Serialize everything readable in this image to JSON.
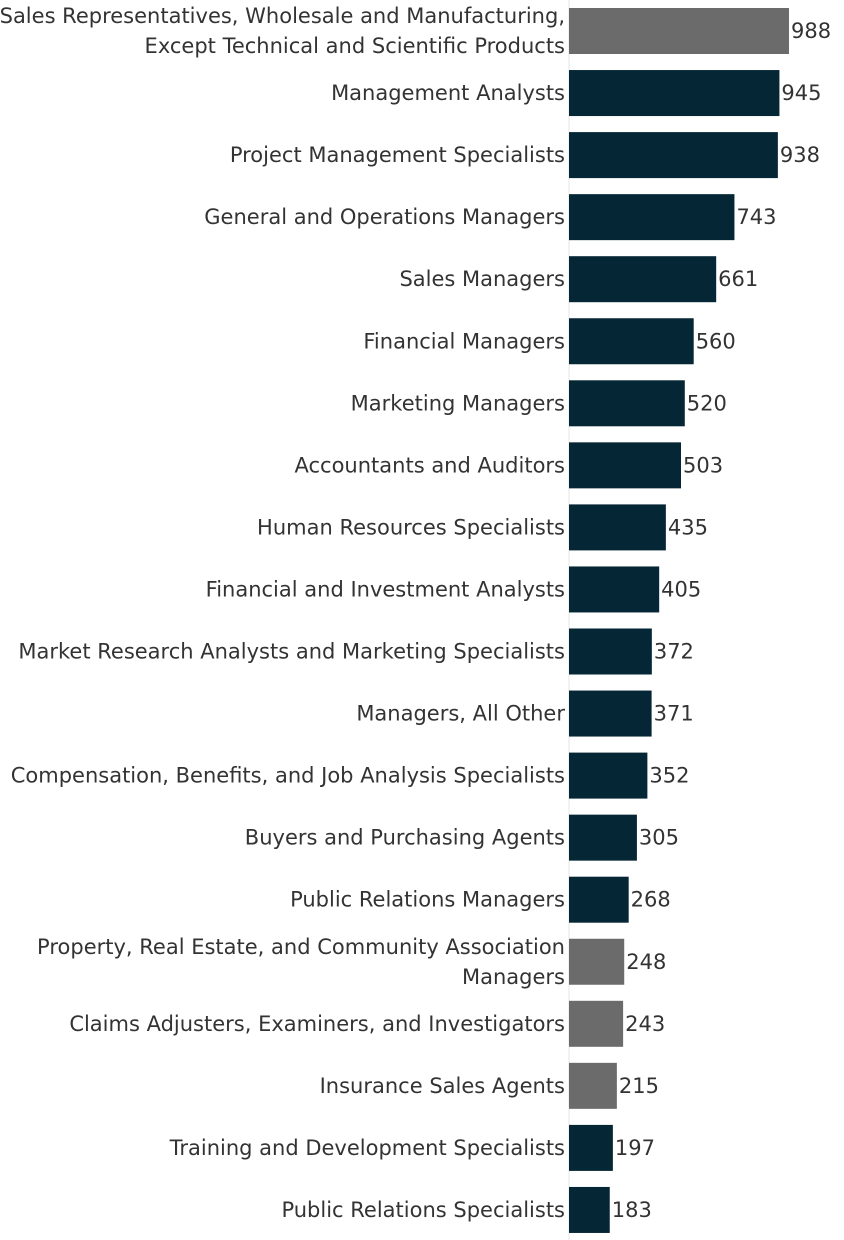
{
  "chart_data": {
    "type": "bar",
    "orientation": "horizontal",
    "title": "",
    "xlabel": "",
    "ylabel": "",
    "xlim": [
      0,
      988
    ],
    "grid": false,
    "legend": "none",
    "colors": {
      "highlight": "#052634",
      "other": "#6b6b6b",
      "axis": "#e6e6e6",
      "text": "#333333"
    },
    "categories": [
      [
        "Sales Representatives, Wholesale and Manufacturing,",
        "Except Technical and Scientific Products"
      ],
      [
        "Management Analysts"
      ],
      [
        "Project Management Specialists"
      ],
      [
        "General and Operations Managers"
      ],
      [
        "Sales Managers"
      ],
      [
        "Financial Managers"
      ],
      [
        "Marketing Managers"
      ],
      [
        "Accountants and Auditors"
      ],
      [
        "Human Resources Specialists"
      ],
      [
        "Financial and Investment Analysts"
      ],
      [
        "Market Research Analysts and Marketing Specialists"
      ],
      [
        "Managers, All Other"
      ],
      [
        "Compensation, Benefits, and Job Analysis Specialists"
      ],
      [
        "Buyers and Purchasing Agents"
      ],
      [
        "Public Relations Managers"
      ],
      [
        "Property, Real Estate, and Community Association",
        "Managers"
      ],
      [
        "Claims Adjusters, Examiners, and Investigators"
      ],
      [
        "Insurance Sales Agents"
      ],
      [
        "Training and Development Specialists"
      ],
      [
        "Public Relations Specialists"
      ]
    ],
    "values": [
      988,
      945,
      938,
      743,
      661,
      560,
      520,
      503,
      435,
      405,
      372,
      371,
      352,
      305,
      268,
      248,
      243,
      215,
      197,
      183
    ],
    "bar_color_group": [
      "other",
      "highlight",
      "highlight",
      "highlight",
      "highlight",
      "highlight",
      "highlight",
      "highlight",
      "highlight",
      "highlight",
      "highlight",
      "highlight",
      "highlight",
      "highlight",
      "highlight",
      "other",
      "other",
      "other",
      "highlight",
      "highlight"
    ]
  }
}
